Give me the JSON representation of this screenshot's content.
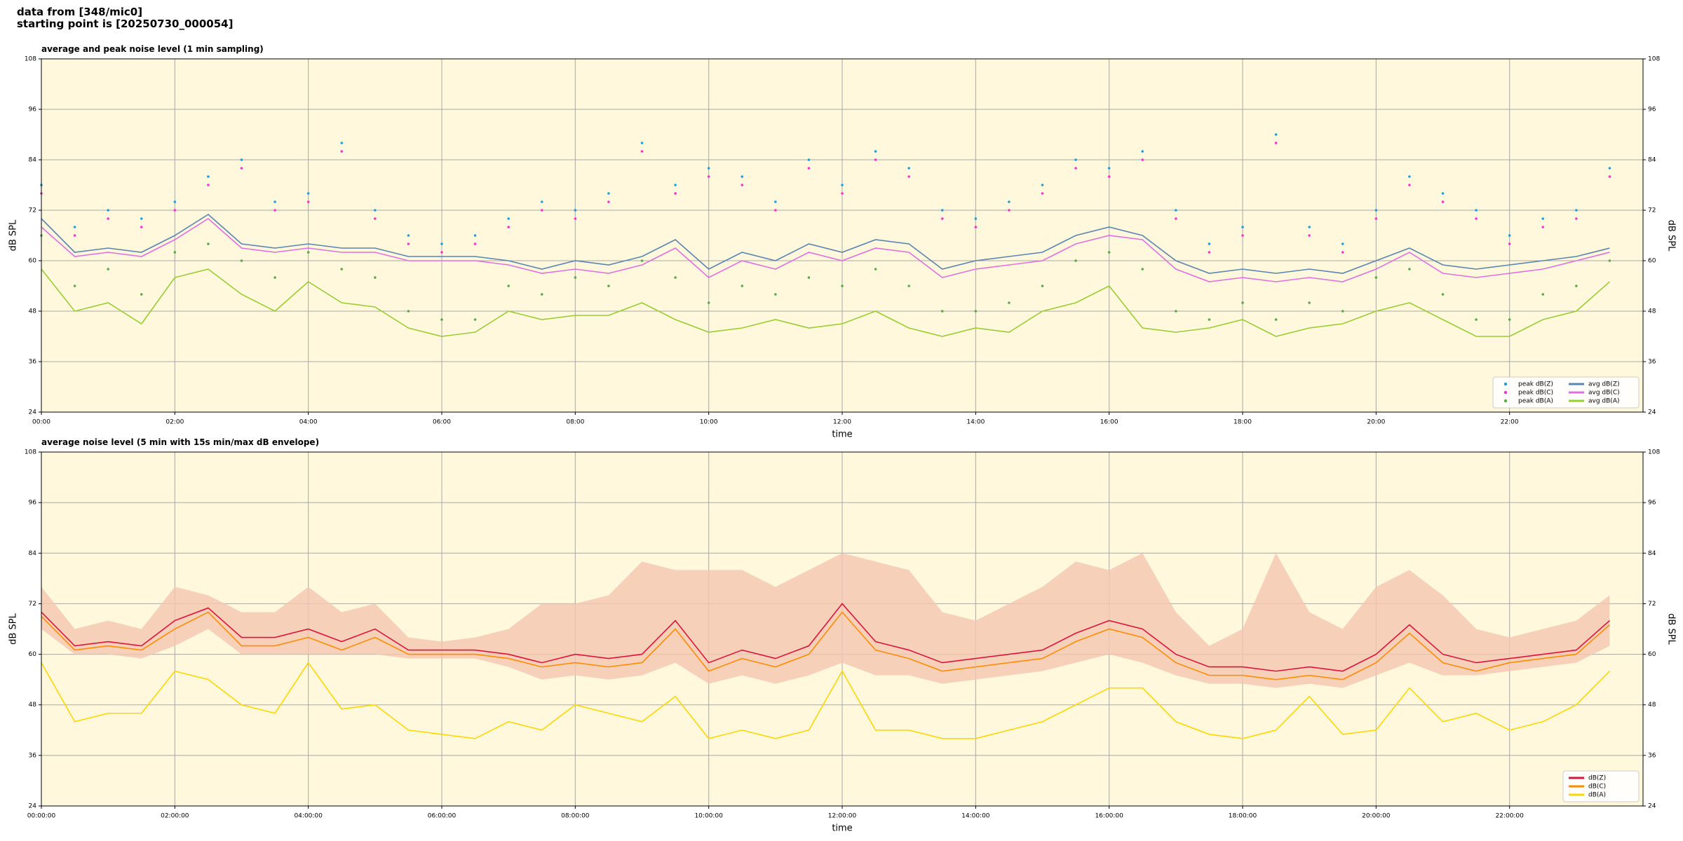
{
  "header": {
    "lines": [
      "data from [348/mic0]",
      "starting point is [20250730_000054]"
    ]
  },
  "chart_data": [
    {
      "type": "line",
      "title": "average and peak noise level (1 min sampling)",
      "x_label": "time",
      "y_label": "dB SPL",
      "background": "#fff8dc",
      "grid": true,
      "legend": "lower right",
      "legend_columns": 2,
      "xlim": [
        0,
        24
      ],
      "ylim": [
        24,
        108
      ],
      "xticks": [
        {
          "value": 0,
          "label": "00:00"
        },
        {
          "value": 2,
          "label": "02:00"
        },
        {
          "value": 4,
          "label": "04:00"
        },
        {
          "value": 6,
          "label": "06:00"
        },
        {
          "value": 8,
          "label": "08:00"
        },
        {
          "value": 10,
          "label": "10:00"
        },
        {
          "value": 12,
          "label": "12:00"
        },
        {
          "value": 14,
          "label": "14:00"
        },
        {
          "value": 16,
          "label": "16:00"
        },
        {
          "value": 18,
          "label": "18:00"
        },
        {
          "value": 20,
          "label": "20:00"
        },
        {
          "value": 22,
          "label": "22:00"
        }
      ],
      "yticks": [
        24,
        36,
        48,
        60,
        72,
        84,
        96,
        108
      ],
      "x": [
        0,
        0.5,
        1,
        1.5,
        2,
        2.5,
        3,
        3.5,
        4,
        4.5,
        5,
        5.5,
        6,
        6.5,
        7,
        7.5,
        8,
        8.5,
        9,
        9.5,
        10,
        10.5,
        11,
        11.5,
        12,
        12.5,
        13,
        13.5,
        14,
        14.5,
        15,
        15.5,
        16,
        16.5,
        17,
        17.5,
        18,
        18.5,
        19,
        19.5,
        20,
        20.5,
        21,
        21.5,
        22,
        22.5,
        23,
        23.5
      ],
      "series": [
        {
          "name": "peak dB(Z)",
          "style": "dots",
          "color": "#1f9fe0",
          "values": [
            78,
            68,
            72,
            70,
            74,
            80,
            84,
            74,
            76,
            88,
            72,
            66,
            64,
            66,
            70,
            74,
            72,
            76,
            88,
            78,
            82,
            80,
            74,
            84,
            78,
            86,
            82,
            72,
            70,
            74,
            78,
            84,
            82,
            86,
            72,
            64,
            68,
            90,
            68,
            64,
            72,
            80,
            76,
            72,
            66,
            70,
            72,
            82
          ]
        },
        {
          "name": "peak dB(C)",
          "style": "dots",
          "color": "#ff33cc",
          "values": [
            76,
            66,
            70,
            68,
            72,
            78,
            82,
            72,
            74,
            86,
            70,
            64,
            62,
            64,
            68,
            72,
            70,
            74,
            86,
            76,
            80,
            78,
            72,
            82,
            76,
            84,
            80,
            70,
            68,
            72,
            76,
            82,
            80,
            84,
            70,
            62,
            66,
            88,
            66,
            62,
            70,
            78,
            74,
            70,
            64,
            68,
            70,
            80
          ]
        },
        {
          "name": "peak dB(A)",
          "style": "dots",
          "color": "#5fa84a",
          "values": [
            66,
            54,
            58,
            52,
            62,
            64,
            60,
            56,
            62,
            58,
            56,
            48,
            46,
            46,
            54,
            52,
            56,
            54,
            60,
            56,
            50,
            54,
            52,
            56,
            54,
            58,
            54,
            48,
            48,
            50,
            54,
            60,
            62,
            58,
            48,
            46,
            50,
            46,
            50,
            48,
            56,
            58,
            52,
            46,
            46,
            52,
            54,
            60
          ]
        },
        {
          "name": "avg dB(Z)",
          "style": "line",
          "color": "#5b84b1",
          "values": [
            70,
            62,
            63,
            62,
            66,
            71,
            64,
            63,
            64,
            63,
            63,
            61,
            61,
            61,
            60,
            58,
            60,
            59,
            61,
            65,
            58,
            62,
            60,
            64,
            62,
            65,
            64,
            58,
            60,
            61,
            62,
            66,
            68,
            66,
            60,
            57,
            58,
            57,
            58,
            57,
            60,
            63,
            59,
            58,
            59,
            60,
            61,
            63
          ]
        },
        {
          "name": "avg dB(C)",
          "style": "line",
          "color": "#e070e0",
          "values": [
            68,
            61,
            62,
            61,
            65,
            70,
            63,
            62,
            63,
            62,
            62,
            60,
            60,
            60,
            59,
            57,
            58,
            57,
            59,
            63,
            56,
            60,
            58,
            62,
            60,
            63,
            62,
            56,
            58,
            59,
            60,
            64,
            66,
            65,
            58,
            55,
            56,
            55,
            56,
            55,
            58,
            62,
            57,
            56,
            57,
            58,
            60,
            62
          ]
        },
        {
          "name": "avg dB(A)",
          "style": "line",
          "color": "#9acd32",
          "values": [
            58,
            48,
            50,
            45,
            56,
            58,
            52,
            48,
            55,
            50,
            49,
            44,
            42,
            43,
            48,
            46,
            47,
            47,
            50,
            46,
            43,
            44,
            46,
            44,
            45,
            48,
            44,
            42,
            44,
            43,
            48,
            50,
            54,
            44,
            43,
            44,
            46,
            42,
            44,
            45,
            48,
            50,
            46,
            42,
            42,
            46,
            48,
            55
          ]
        }
      ]
    },
    {
      "type": "line",
      "title": "average noise level (5 min with 15s min/max dB envelope)",
      "x_label": "time",
      "y_label": "dB SPL",
      "background": "#fff8dc",
      "grid": true,
      "legend": "lower right",
      "legend_columns": 1,
      "xlim": [
        0,
        24
      ],
      "ylim": [
        24,
        108
      ],
      "xticks": [
        {
          "value": 0,
          "label": "00:00:00"
        },
        {
          "value": 2,
          "label": "02:00:00"
        },
        {
          "value": 4,
          "label": "04:00:00"
        },
        {
          "value": 6,
          "label": "06:00:00"
        },
        {
          "value": 8,
          "label": "08:00:00"
        },
        {
          "value": 10,
          "label": "10:00:00"
        },
        {
          "value": 12,
          "label": "12:00:00"
        },
        {
          "value": 14,
          "label": "14:00:00"
        },
        {
          "value": 16,
          "label": "16:00:00"
        },
        {
          "value": 18,
          "label": "18:00:00"
        },
        {
          "value": 20,
          "label": "20:00:00"
        },
        {
          "value": 22,
          "label": "22:00:00"
        }
      ],
      "yticks": [
        24,
        36,
        48,
        60,
        72,
        84,
        96,
        108
      ],
      "x": [
        0,
        0.5,
        1,
        1.5,
        2,
        2.5,
        3,
        3.5,
        4,
        4.5,
        5,
        5.5,
        6,
        6.5,
        7,
        7.5,
        8,
        8.5,
        9,
        9.5,
        10,
        10.5,
        11,
        11.5,
        12,
        12.5,
        13,
        13.5,
        14,
        14.5,
        15,
        15.5,
        16,
        16.5,
        17,
        17.5,
        18,
        18.5,
        19,
        19.5,
        20,
        20.5,
        21,
        21.5,
        22,
        22.5,
        23,
        23.5
      ],
      "envelope": {
        "color": "#f5c6b0",
        "max": [
          76,
          66,
          68,
          66,
          76,
          74,
          70,
          70,
          76,
          70,
          72,
          64,
          63,
          64,
          66,
          72,
          72,
          74,
          82,
          80,
          80,
          80,
          76,
          80,
          84,
          82,
          80,
          70,
          68,
          72,
          76,
          82,
          80,
          84,
          70,
          62,
          66,
          84,
          70,
          66,
          76,
          80,
          74,
          66,
          64,
          66,
          68,
          74
        ],
        "min": [
          66,
          60,
          60,
          59,
          62,
          66,
          60,
          60,
          60,
          60,
          60,
          59,
          59,
          59,
          57,
          54,
          55,
          54,
          55,
          58,
          53,
          55,
          53,
          55,
          58,
          55,
          55,
          53,
          54,
          55,
          56,
          58,
          60,
          58,
          55,
          53,
          53,
          52,
          53,
          52,
          55,
          58,
          55,
          55,
          56,
          57,
          58,
          62
        ]
      },
      "series": [
        {
          "name": "dB(Z)",
          "style": "line",
          "color": "#dc143c",
          "values": [
            70,
            62,
            63,
            62,
            68,
            71,
            64,
            64,
            66,
            63,
            66,
            61,
            61,
            61,
            60,
            58,
            60,
            59,
            60,
            68,
            58,
            61,
            59,
            62,
            72,
            63,
            61,
            58,
            59,
            60,
            61,
            65,
            68,
            66,
            60,
            57,
            57,
            56,
            57,
            56,
            60,
            67,
            60,
            58,
            59,
            60,
            61,
            68
          ]
        },
        {
          "name": "dB(C)",
          "style": "line",
          "color": "#ff8c00",
          "values": [
            69,
            61,
            62,
            61,
            66,
            70,
            62,
            62,
            64,
            61,
            64,
            60,
            60,
            60,
            59,
            57,
            58,
            57,
            58,
            66,
            56,
            59,
            57,
            60,
            70,
            61,
            59,
            56,
            57,
            58,
            59,
            63,
            66,
            64,
            58,
            55,
            55,
            54,
            55,
            54,
            58,
            65,
            58,
            56,
            58,
            59,
            60,
            67
          ]
        },
        {
          "name": "dB(A)",
          "style": "line",
          "color": "#ffd700",
          "values": [
            58,
            44,
            46,
            46,
            56,
            54,
            48,
            46,
            58,
            47,
            48,
            42,
            41,
            40,
            44,
            42,
            48,
            46,
            44,
            50,
            40,
            42,
            40,
            42,
            56,
            42,
            42,
            40,
            40,
            42,
            44,
            48,
            52,
            52,
            44,
            41,
            40,
            42,
            50,
            41,
            42,
            52,
            44,
            46,
            42,
            44,
            48,
            56
          ]
        }
      ]
    }
  ]
}
